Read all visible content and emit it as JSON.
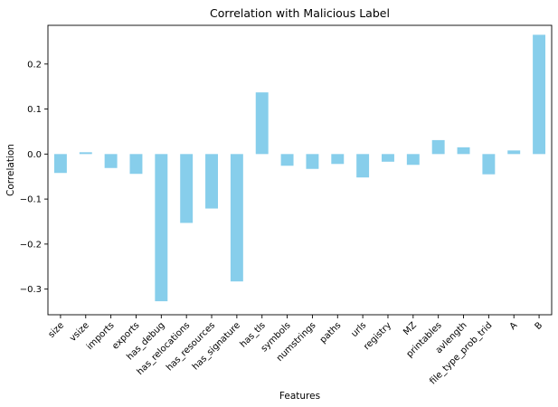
{
  "chart_data": {
    "type": "bar",
    "title": "Correlation with Malicious Label",
    "xlabel": "Features",
    "ylabel": "Correlation",
    "categories": [
      "size",
      "vsize",
      "imports",
      "exports",
      "has_debug",
      "has_relocations",
      "has_resources",
      "has_signature",
      "has_tls",
      "symbols",
      "numstrings",
      "paths",
      "urls",
      "registry",
      "MZ",
      "printables",
      "avlength",
      "file_type_prob_trid",
      "A",
      "B"
    ],
    "values": [
      -0.042,
      0.004,
      -0.031,
      -0.044,
      -0.327,
      -0.153,
      -0.121,
      -0.283,
      0.137,
      -0.026,
      -0.033,
      -0.022,
      -0.052,
      -0.017,
      -0.024,
      0.031,
      0.015,
      -0.045,
      0.008,
      0.265
    ],
    "ylim": [
      -0.357,
      0.286
    ],
    "yticks": [
      -0.3,
      -0.2,
      -0.1,
      0.0,
      0.1,
      0.2
    ],
    "ytick_labels": [
      "−0.3",
      "−0.2",
      "−0.1",
      "0.0",
      "0.1",
      "0.2"
    ],
    "bar_color": "#87CEEB",
    "grid": false,
    "legend": "none"
  }
}
